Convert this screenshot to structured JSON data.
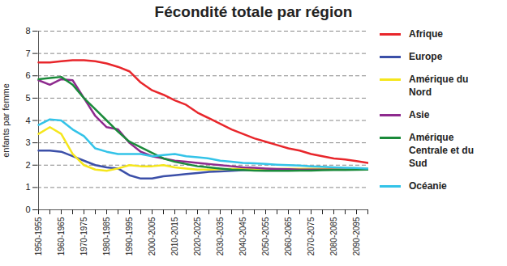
{
  "chart_data": {
    "type": "line",
    "title": "Fécondité totale par région",
    "y_label": "enfants par femme",
    "categories": [
      "1950-1955",
      null,
      "1960-1965",
      null,
      "1970-1975",
      null,
      "1980-1985",
      null,
      "1990-1995",
      null,
      "2000-2005",
      null,
      "2010-2015",
      null,
      "2020-2025",
      null,
      "2030-2035",
      null,
      "2040-2045",
      null,
      "2050-2055",
      null,
      "2060-2065",
      null,
      "2070-2075",
      null,
      "2080-2085",
      null,
      "2090-2095",
      null
    ],
    "ylim": [
      0,
      8
    ],
    "yticks": [
      0,
      1,
      2,
      3,
      4,
      5,
      6,
      7,
      8
    ],
    "grid": true,
    "legend": "right",
    "series": [
      {
        "name": "Afrique",
        "color": "#e8262b",
        "values": [
          6.6,
          6.6,
          6.65,
          6.7,
          6.7,
          6.65,
          6.55,
          6.4,
          6.2,
          5.7,
          5.35,
          5.15,
          4.9,
          4.7,
          4.35,
          4.1,
          3.85,
          3.6,
          3.4,
          3.2,
          3.05,
          2.9,
          2.75,
          2.65,
          2.5,
          2.4,
          2.3,
          2.25,
          2.18,
          2.1
        ]
      },
      {
        "name": "Europe",
        "color": "#3b4fa8",
        "values": [
          2.65,
          2.65,
          2.6,
          2.4,
          2.2,
          2.0,
          1.9,
          1.85,
          1.55,
          1.4,
          1.4,
          1.5,
          1.55,
          1.6,
          1.65,
          1.7,
          1.72,
          1.75,
          1.77,
          1.78,
          1.8,
          1.8,
          1.8,
          1.8,
          1.8,
          1.82,
          1.82,
          1.82,
          1.83,
          1.83
        ]
      },
      {
        "name": "Amérique du Nord",
        "color": "#f5e61c",
        "values": [
          3.4,
          3.7,
          3.4,
          2.5,
          2.0,
          1.8,
          1.75,
          1.85,
          2.0,
          1.95,
          1.95,
          2.0,
          1.9,
          1.85,
          1.8,
          1.8,
          1.82,
          1.83,
          1.83,
          1.83,
          1.83,
          1.83,
          1.84,
          1.84,
          1.84,
          1.84,
          1.85,
          1.85,
          1.85,
          1.85
        ]
      },
      {
        "name": "Asie",
        "color": "#8e2a8e",
        "values": [
          5.8,
          5.6,
          5.85,
          5.8,
          5.0,
          4.2,
          3.7,
          3.6,
          3.0,
          2.6,
          2.4,
          2.3,
          2.2,
          2.15,
          2.1,
          2.05,
          2.0,
          1.95,
          1.9,
          1.88,
          1.85,
          1.83,
          1.82,
          1.8,
          1.8,
          1.8,
          1.8,
          1.8,
          1.8,
          1.8
        ]
      },
      {
        "name": "Amérique Centrale et du Sud",
        "color": "#1a8a3a",
        "values": [
          5.85,
          5.9,
          5.95,
          5.6,
          5.0,
          4.5,
          4.0,
          3.5,
          3.05,
          2.8,
          2.55,
          2.3,
          2.15,
          2.05,
          1.95,
          1.9,
          1.85,
          1.8,
          1.78,
          1.76,
          1.75,
          1.75,
          1.75,
          1.76,
          1.76,
          1.77,
          1.78,
          1.78,
          1.79,
          1.8
        ]
      },
      {
        "name": "Océanie",
        "color": "#33c3e8",
        "values": [
          3.8,
          4.05,
          4.0,
          3.6,
          3.3,
          2.75,
          2.6,
          2.5,
          2.5,
          2.5,
          2.4,
          2.45,
          2.5,
          2.4,
          2.35,
          2.3,
          2.2,
          2.15,
          2.1,
          2.08,
          2.05,
          2.02,
          2.0,
          1.98,
          1.95,
          1.93,
          1.9,
          1.88,
          1.87,
          1.85
        ]
      }
    ]
  }
}
